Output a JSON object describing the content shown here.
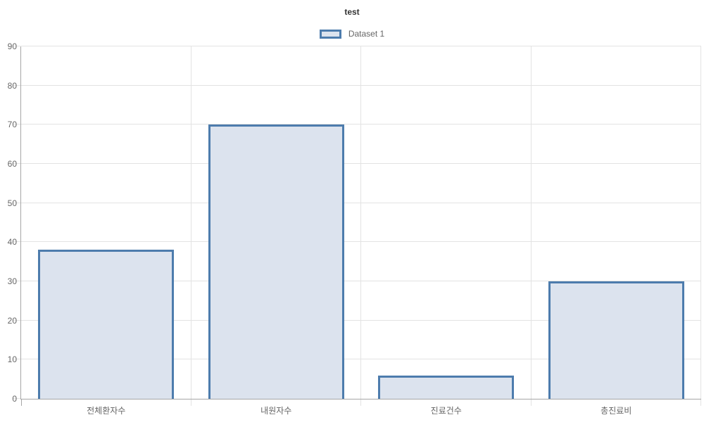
{
  "chart_data": {
    "type": "bar",
    "title": "test",
    "categories": [
      "전체환자수",
      "내원자수",
      "진료건수",
      "총진료비"
    ],
    "series": [
      {
        "name": "Dataset 1",
        "values": [
          38,
          70,
          6,
          30
        ]
      }
    ],
    "ylabel": "",
    "xlabel": "",
    "ylim": [
      0,
      90
    ],
    "yticks": [
      0,
      10,
      20,
      30,
      40,
      50,
      60,
      70,
      80,
      90
    ],
    "grid": true,
    "legend_position": "top",
    "colors": {
      "bar_fill": "#dce3ee",
      "bar_border": "#4d7cad",
      "grid_line": "#e3e3e3",
      "axis_line": "#a6a6a6",
      "tick_text": "#666666",
      "title_text": "#333333"
    }
  }
}
